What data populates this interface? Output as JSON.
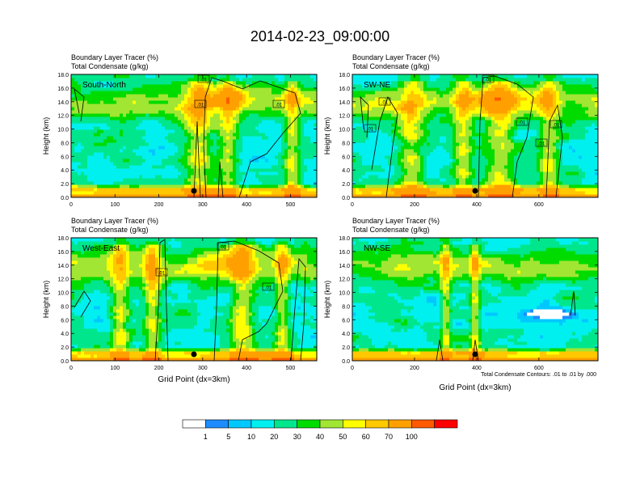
{
  "figure": {
    "title": "2014-02-23_09:00:00",
    "footnote": "Total Condensate Contours: .01 to .01 by .000"
  },
  "colorbar": {
    "labels": [
      "1",
      "5",
      "10",
      "20",
      "30",
      "40",
      "50",
      "60",
      "70",
      "100"
    ],
    "colors": [
      "#ffffff",
      "#1e8cff",
      "#00c8ff",
      "#00f0f0",
      "#00e68c",
      "#00dc00",
      "#a0e632",
      "#ffff00",
      "#ffc800",
      "#ffa000",
      "#ff5a00",
      "#ff0000"
    ]
  },
  "chart_data": [
    {
      "type": "heatmap",
      "label": "South-North",
      "field_title": "Boundary Layer Tracer   (%)",
      "contour_title": "Total Condensate   (g/kg)",
      "xlabel": "",
      "ylabel": "Height (km)",
      "xlim": [
        0,
        560
      ],
      "ylim": [
        0,
        18
      ],
      "xticks": [
        "0",
        "100",
        "200",
        "300",
        "400",
        "500"
      ],
      "yticks": [
        "0.0",
        "2.0",
        "4.0",
        "6.0",
        "8.0",
        "10.0",
        "12.0",
        "14.0",
        "16.0",
        "18.0"
      ],
      "marker_x": 280,
      "contour_labels": [
        ".01",
        ".01",
        ".01"
      ],
      "note": ""
    },
    {
      "type": "heatmap",
      "label": "SW-NE",
      "field_title": "Boundary Layer Tracer   (%)",
      "contour_title": "Total Condensate   (g/kg)",
      "xlabel": "",
      "ylabel": "Height (km)",
      "xlim": [
        0,
        790
      ],
      "ylim": [
        0,
        18
      ],
      "xticks": [
        "0",
        "200",
        "400",
        "600"
      ],
      "yticks": [
        "0.0",
        "2.0",
        "4.0",
        "6.0",
        "8.0",
        "10.0",
        "12.0",
        "14.0",
        "16.0",
        "18.0"
      ],
      "marker_x": 395,
      "contour_labels": [
        ".01",
        ".01",
        ".01",
        ".01",
        ".01",
        ".01"
      ],
      "note": ""
    },
    {
      "type": "heatmap",
      "label": "West-East",
      "field_title": "Boundary Layer Tracer   (%)",
      "contour_title": "Total Condensate   (g/kg)",
      "xlabel": "Grid Point (dx=3km)",
      "ylabel": "Height (km)",
      "xlim": [
        0,
        560
      ],
      "ylim": [
        0,
        18
      ],
      "xticks": [
        "0",
        "100",
        "200",
        "300",
        "400",
        "500"
      ],
      "yticks": [
        "0.0",
        "2.0",
        "4.0",
        "6.0",
        "8.0",
        "10.0",
        "12.0",
        "14.0",
        "16.0",
        "18.0"
      ],
      "marker_x": 280,
      "contour_labels": [
        ".01",
        ".01",
        ".01"
      ],
      "note": ""
    },
    {
      "type": "heatmap",
      "label": "NW-SE",
      "field_title": "Boundary Layer Tracer   (%)",
      "contour_title": "Total Condensate   (g/kg)",
      "xlabel": "Grid Point (dx=3km)",
      "ylabel": "Height (km)",
      "xlim": [
        0,
        790
      ],
      "ylim": [
        0,
        18
      ],
      "xticks": [
        "0",
        "200",
        "400",
        "600"
      ],
      "yticks": [
        "0.0",
        "2.0",
        "4.0",
        "6.0",
        "8.0",
        "10.0",
        "12.0",
        "14.0",
        "16.0",
        "18.0"
      ],
      "marker_x": 395,
      "contour_labels": [],
      "note": "Total Condensate Contours: .01 to .01 by .000"
    }
  ]
}
